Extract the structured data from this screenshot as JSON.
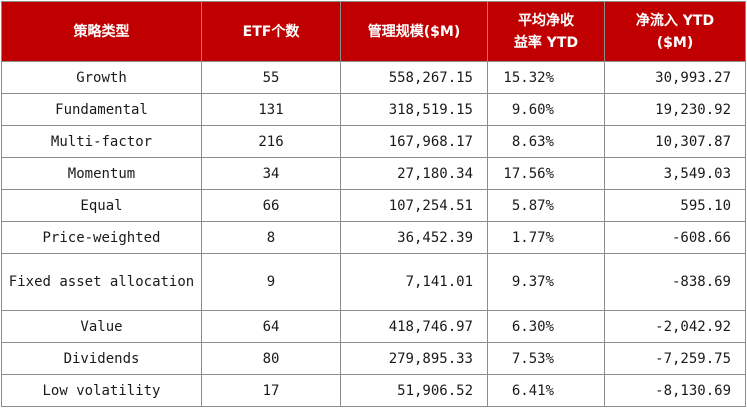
{
  "table": {
    "headers": {
      "strategy": "策略类型",
      "etf_count": "ETF个数",
      "aum": "管理规模($M)",
      "avg_return_line1": "平均净收",
      "avg_return_line2": "益率 YTD",
      "net_inflow_line1": "净流入 YTD",
      "net_inflow_line2": "($M)"
    },
    "rows": [
      {
        "strategy": "Growth",
        "etf_count": "55",
        "aum": "558,267.15",
        "avg_return": "15.32%",
        "net_inflow": "30,993.27"
      },
      {
        "strategy": "Fundamental",
        "etf_count": "131",
        "aum": "318,519.15",
        "avg_return": "9.60%",
        "net_inflow": "19,230.92"
      },
      {
        "strategy": "Multi-factor",
        "etf_count": "216",
        "aum": "167,968.17",
        "avg_return": "8.63%",
        "net_inflow": "10,307.87"
      },
      {
        "strategy": "Momentum",
        "etf_count": "34",
        "aum": "27,180.34",
        "avg_return": "17.56%",
        "net_inflow": "3,549.03"
      },
      {
        "strategy": "Equal",
        "etf_count": "66",
        "aum": "107,254.51",
        "avg_return": "5.87%",
        "net_inflow": "595.10"
      },
      {
        "strategy": "Price-weighted",
        "etf_count": "8",
        "aum": "36,452.39",
        "avg_return": "1.77%",
        "net_inflow": "-608.66"
      },
      {
        "strategy": "Fixed asset allocation",
        "etf_count": "9",
        "aum": "7,141.01",
        "avg_return": "9.37%",
        "net_inflow": "-838.69"
      },
      {
        "strategy": "Value",
        "etf_count": "64",
        "aum": "418,746.97",
        "avg_return": "6.30%",
        "net_inflow": "-2,042.92"
      },
      {
        "strategy": "Dividends",
        "etf_count": "80",
        "aum": "279,895.33",
        "avg_return": "7.53%",
        "net_inflow": "-7,259.75"
      },
      {
        "strategy": "Low volatility",
        "etf_count": "17",
        "aum": "51,906.52",
        "avg_return": "6.41%",
        "net_inflow": "-8,130.69"
      }
    ]
  },
  "colors": {
    "header_background": "#c00000",
    "header_text": "#ffffff",
    "grid_line": "#8c8c8c"
  }
}
